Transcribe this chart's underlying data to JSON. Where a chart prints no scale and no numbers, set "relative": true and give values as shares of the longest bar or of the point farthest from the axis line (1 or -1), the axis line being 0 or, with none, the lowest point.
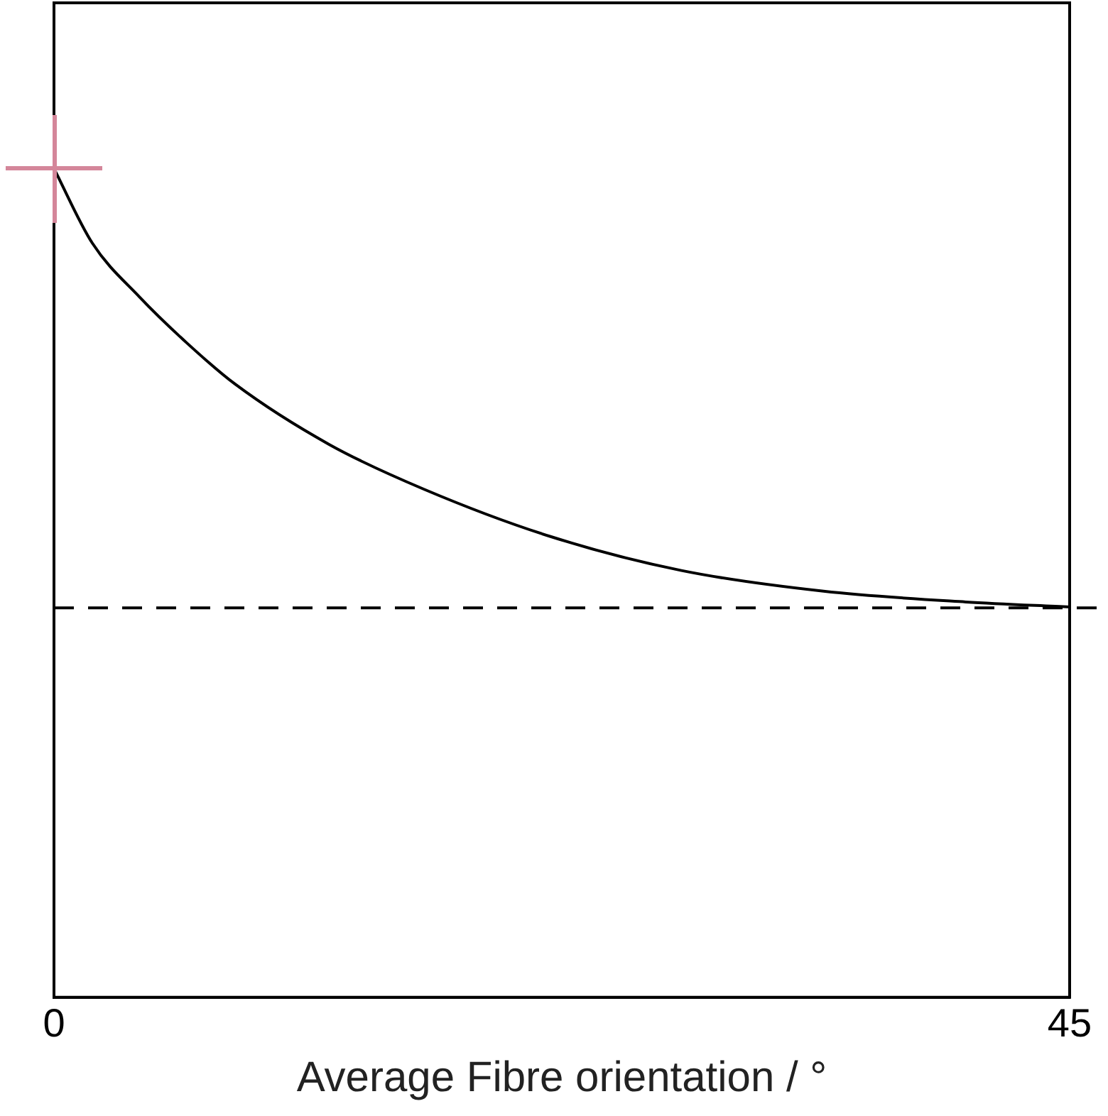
{
  "chart_data": {
    "type": "line",
    "xlabel": "Average Fibre orientation / °",
    "relative": true,
    "xlim": [
      0,
      45
    ],
    "xticks": [
      0,
      45
    ],
    "tick_labels": "x",
    "grid": false,
    "legend": false,
    "series": [
      {
        "color": "#000000",
        "x": [
          0,
          1.7,
          3.79,
          5.87,
          8.02,
          12.2,
          16.4,
          22.0,
          27.8,
          34.1,
          40.4,
          45
        ],
        "values": [
          1,
          0.91,
          0.845,
          0.79,
          0.74,
          0.667,
          0.613,
          0.556,
          0.515,
          0.49,
          0.477,
          0.471
        ],
        "marker": "none",
        "line_style": "solid"
      }
    ],
    "ref_lines": [
      {
        "axis": "y",
        "value": 0.47,
        "color": "#000000",
        "line_style": "dashed"
      }
    ]
  }
}
